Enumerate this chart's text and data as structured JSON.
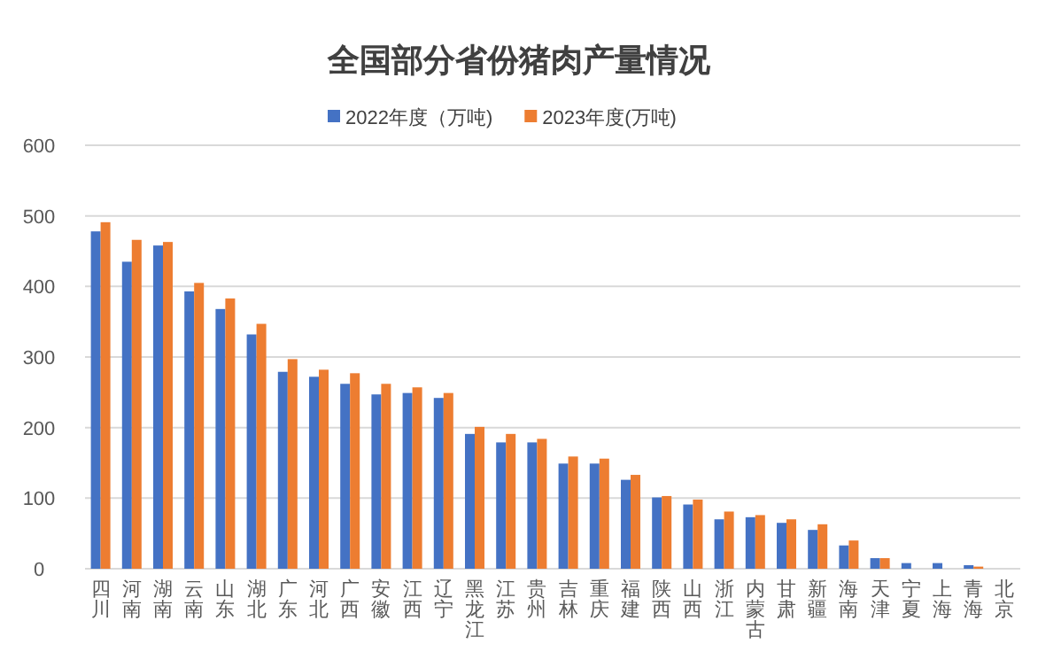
{
  "chart_data": {
    "type": "bar",
    "title": "全国部分省份猪肉产量情况",
    "categories": [
      "四川",
      "河南",
      "湖南",
      "云南",
      "山东",
      "湖北",
      "广东",
      "河北",
      "广西",
      "安徽",
      "江西",
      "辽宁",
      "黑龙江",
      "江苏",
      "贵州",
      "吉林",
      "重庆",
      "福建",
      "陕西",
      "山西",
      "浙江",
      "内蒙古",
      "甘肃",
      "新疆",
      "海南",
      "天津",
      "宁夏",
      "上海",
      "青海",
      "北京"
    ],
    "series": [
      {
        "name": "2022年度（万吨)",
        "color": "#4472c4",
        "values": [
          478,
          435,
          458,
          393,
          368,
          332,
          279,
          272,
          262,
          247,
          249,
          242,
          191,
          179,
          179,
          149,
          149,
          126,
          101,
          91,
          70,
          73,
          65,
          55,
          33,
          15,
          8,
          8,
          5,
          null
        ]
      },
      {
        "name": "2023年度(万吨)",
        "color": "#ed7d31",
        "values": [
          491,
          466,
          463,
          405,
          383,
          347,
          297,
          282,
          277,
          262,
          257,
          249,
          201,
          191,
          184,
          159,
          156,
          133,
          103,
          98,
          81,
          76,
          70,
          63,
          40,
          15,
          null,
          null,
          3,
          null
        ]
      }
    ],
    "ylim": [
      0,
      600
    ],
    "yticks": [
      0,
      100,
      200,
      300,
      400,
      500,
      600
    ],
    "grid": "y",
    "legend": "top"
  }
}
